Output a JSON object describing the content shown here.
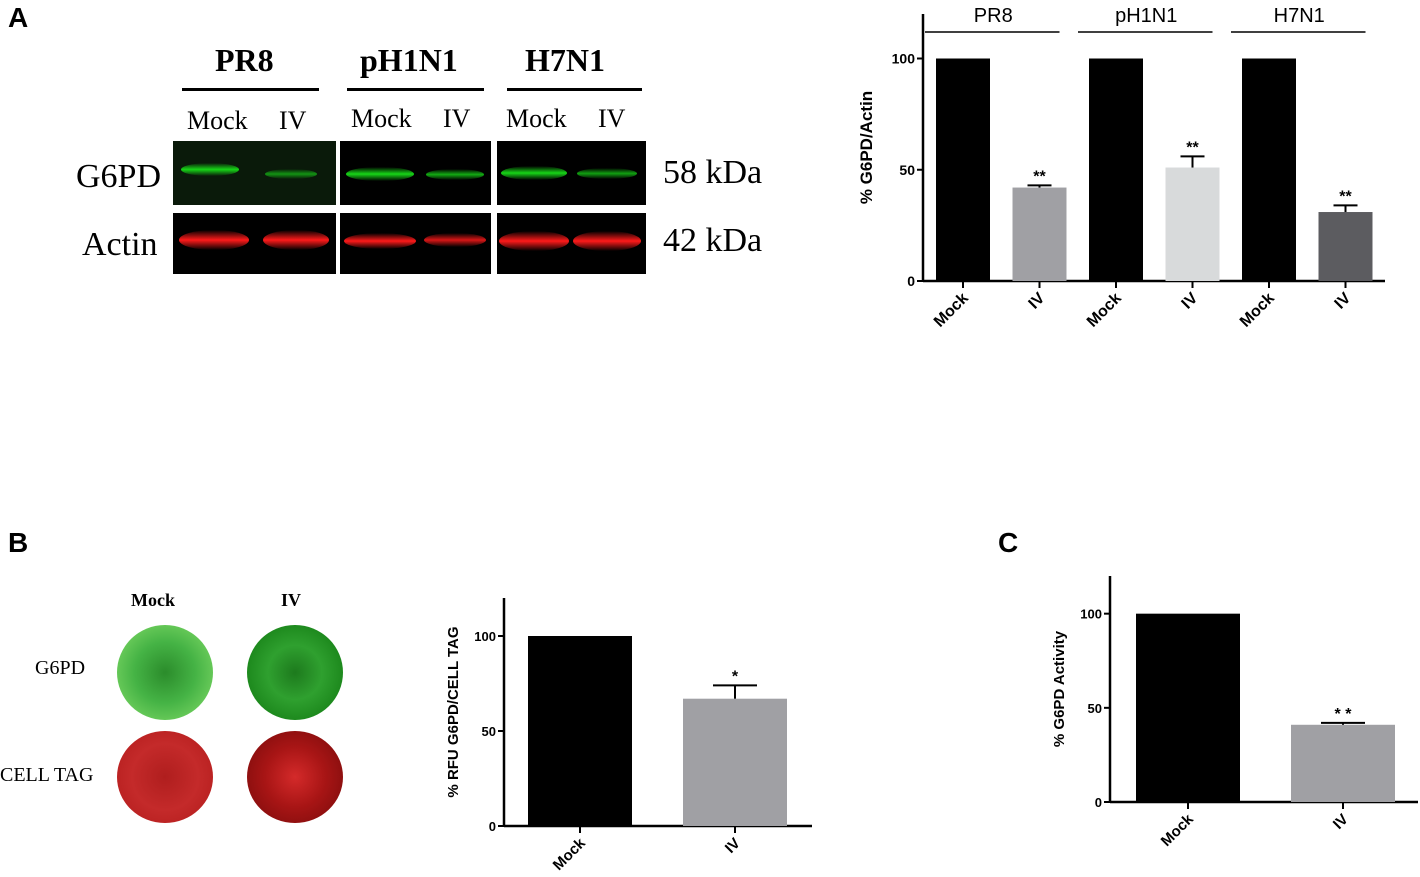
{
  "panels": {
    "a": "A",
    "b": "B",
    "c": "C"
  },
  "blot": {
    "groups": [
      "PR8",
      "pH1N1",
      "H7N1"
    ],
    "lanes": [
      "Mock",
      "IV",
      "Mock",
      "IV",
      "Mock",
      "IV"
    ],
    "rows": [
      "G6PD",
      "Actin"
    ],
    "sizes": [
      "58 kDa",
      "42 kDa"
    ],
    "colors": {
      "green": "#17d617",
      "red": "#ff1a1a"
    }
  },
  "wells": {
    "columns": [
      "Mock",
      "IV"
    ],
    "rows": [
      "G6PD",
      "CELL TAG"
    ]
  },
  "chart_data": [
    {
      "type": "bar",
      "panel": "A",
      "groups": [
        "PR8",
        "pH1N1",
        "H7N1"
      ],
      "categories": [
        "Mock",
        "IV",
        "Mock",
        "IV",
        "Mock",
        "IV"
      ],
      "values": [
        100,
        42,
        100,
        51,
        100,
        31
      ],
      "errors": [
        0,
        1,
        0,
        5,
        0,
        3
      ],
      "significance": [
        "",
        "**",
        "",
        "**",
        "",
        "**"
      ],
      "bar_colors": [
        "#000000",
        "#a0a0a4",
        "#000000",
        "#d8dadb",
        "#000000",
        "#5c5c60"
      ],
      "ylabel": "% G6PD/Actin",
      "yticks": [
        0,
        50,
        100
      ],
      "ylim": [
        0,
        120
      ]
    },
    {
      "type": "bar",
      "panel": "B",
      "categories": [
        "Mock",
        "IV"
      ],
      "values": [
        100,
        67
      ],
      "errors": [
        0,
        7
      ],
      "significance": [
        "",
        "*"
      ],
      "bar_colors": [
        "#000000",
        "#a0a0a4"
      ],
      "ylabel": "% RFU G6PD/CELL TAG",
      "yticks": [
        0,
        50,
        100
      ],
      "ylim": [
        0,
        120
      ]
    },
    {
      "type": "bar",
      "panel": "C",
      "categories": [
        "Mock",
        "IV"
      ],
      "values": [
        100,
        41
      ],
      "errors": [
        0,
        1
      ],
      "significance": [
        "",
        "* *"
      ],
      "bar_colors": [
        "#000000",
        "#a0a0a4"
      ],
      "ylabel": "% G6PD Activity",
      "yticks": [
        0,
        50,
        100
      ],
      "ylim": [
        0,
        120
      ]
    }
  ]
}
